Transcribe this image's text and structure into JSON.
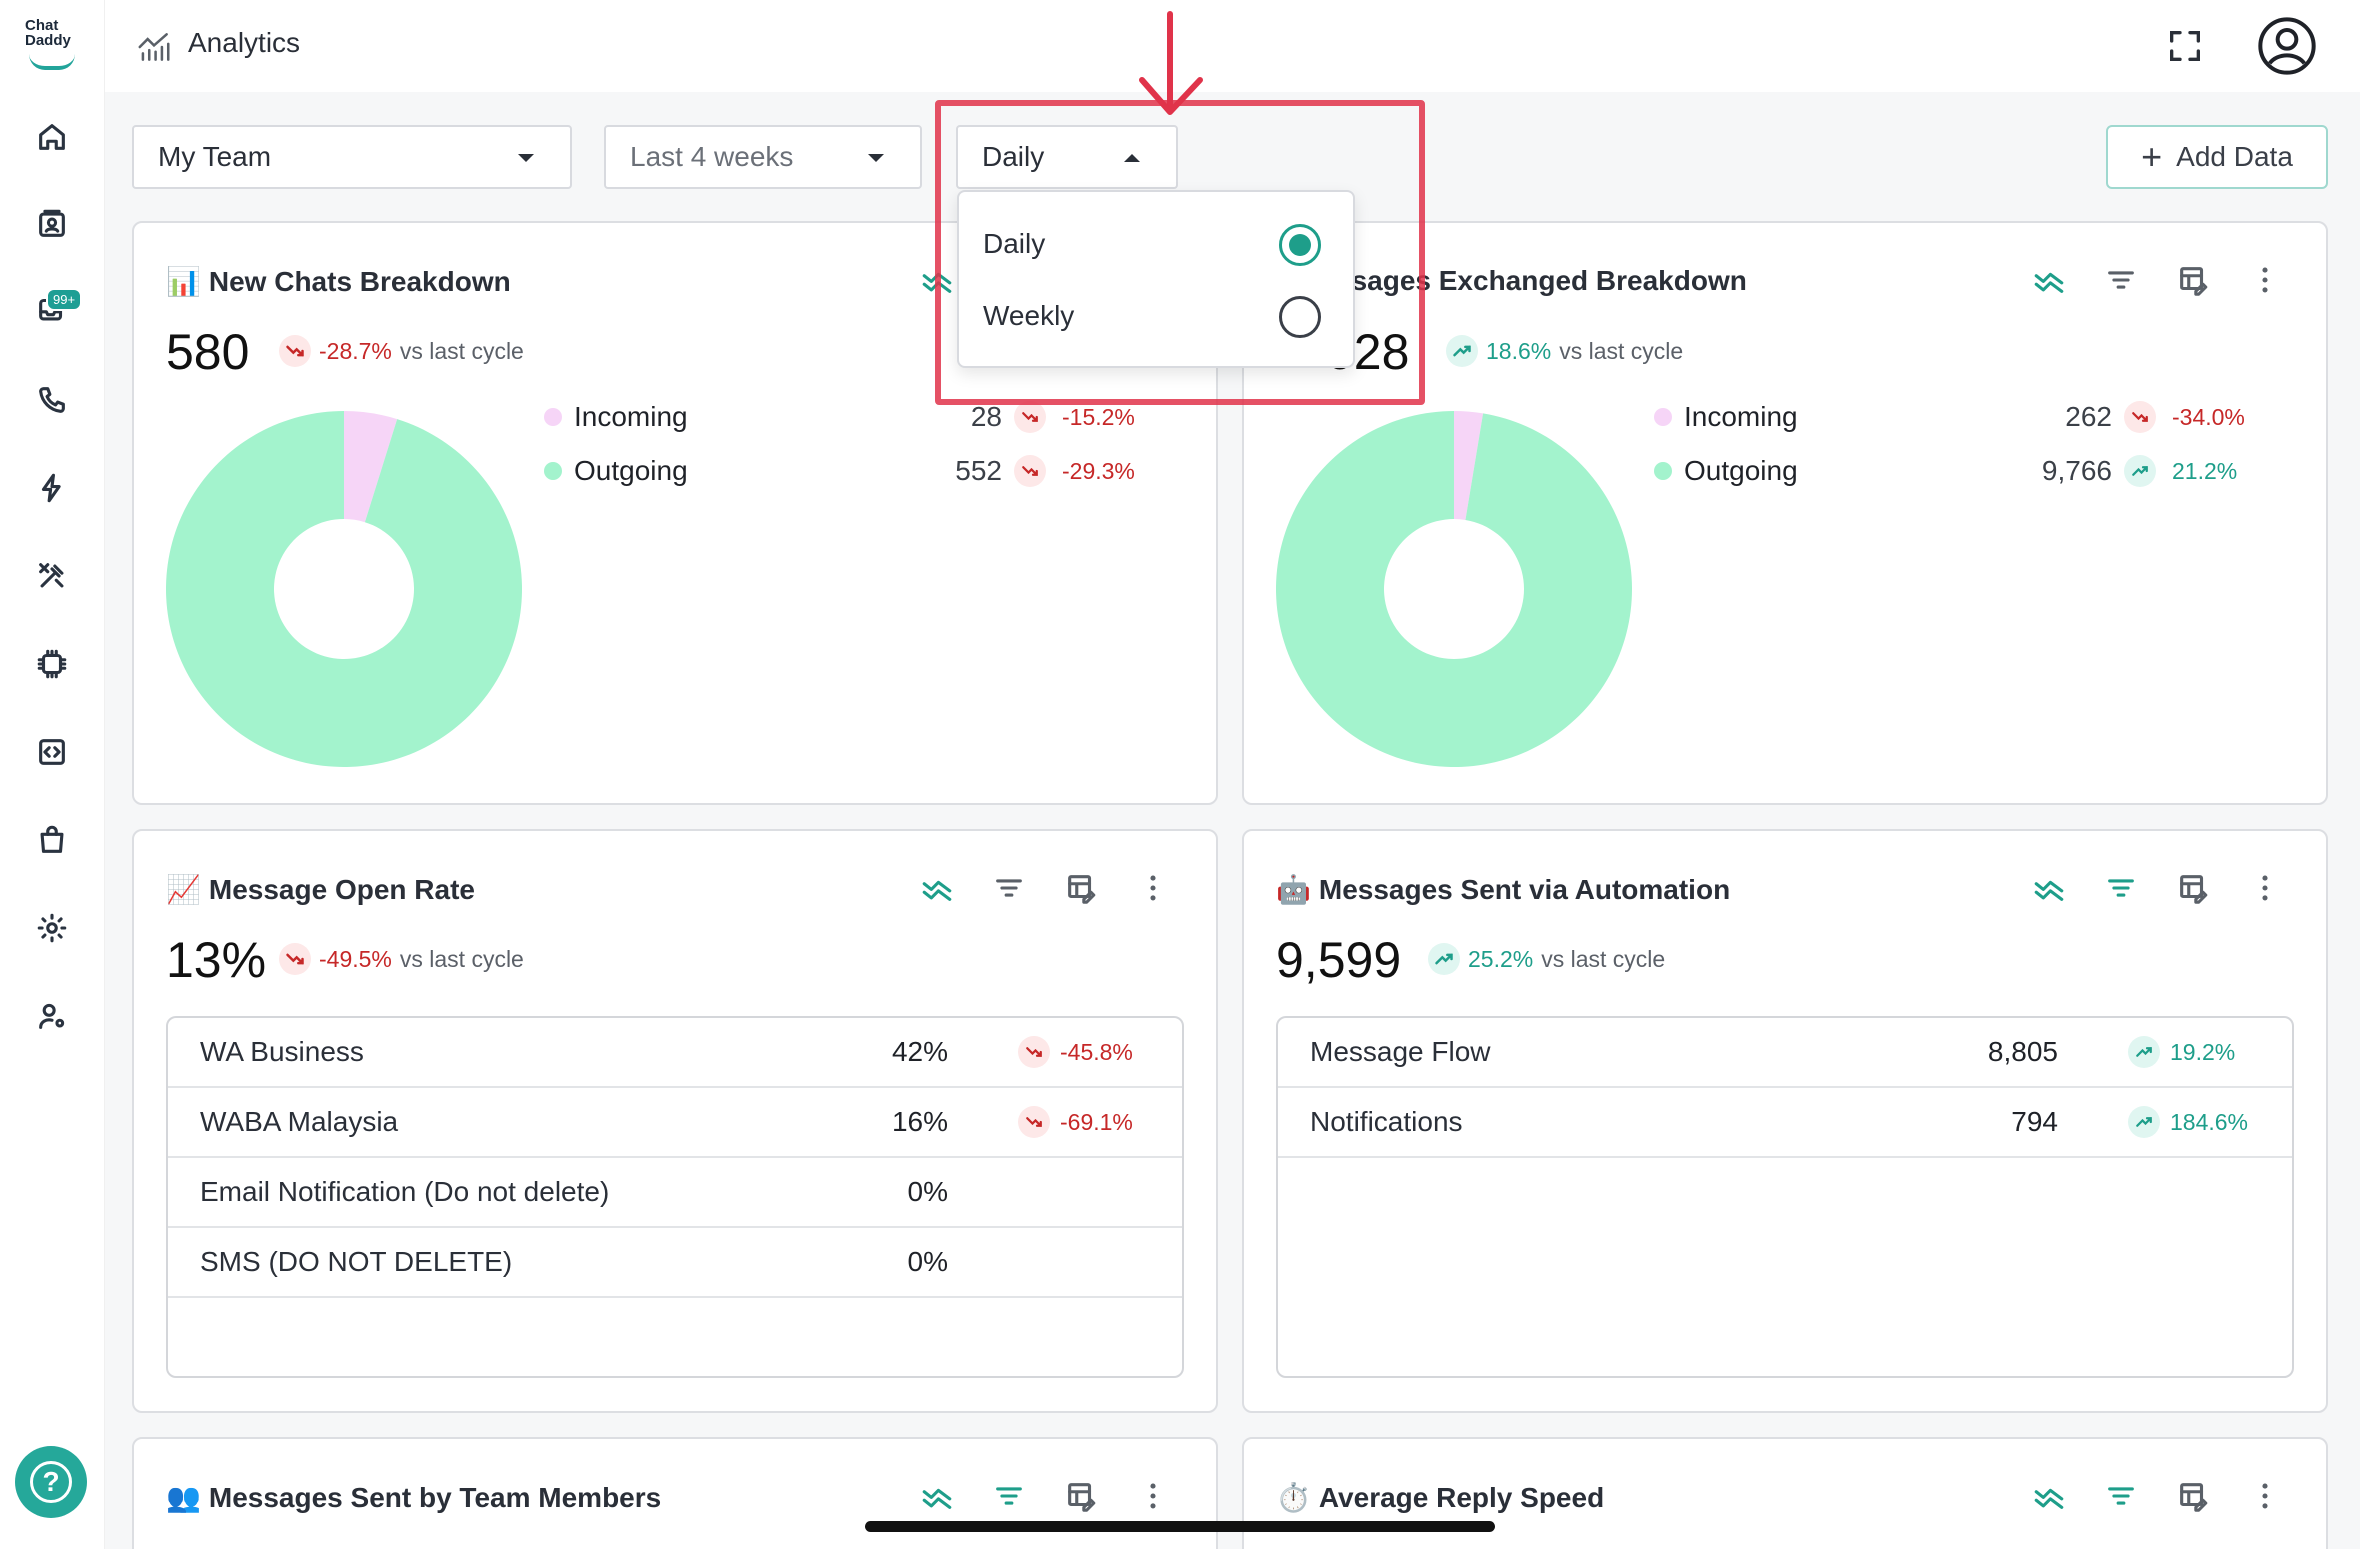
{
  "app": {
    "logo_line1": "Chat",
    "logo_line2": "Daddy",
    "title": "Analytics"
  },
  "sidebar": {
    "inbox_badge": "99+",
    "help_label": "?"
  },
  "filters": {
    "team": "My Team",
    "period": "Last 4 weeks",
    "interval": "Daily"
  },
  "dropdown": {
    "options": [
      {
        "label": "Daily",
        "selected": true
      },
      {
        "label": "Weekly",
        "selected": false
      }
    ]
  },
  "add_data_label": "Add Data",
  "vs_label": "vs last cycle",
  "cards": {
    "new_chats": {
      "emoji": "📊",
      "title": "New Chats Breakdown",
      "total": "580",
      "change": "-28.7%",
      "direction": "down",
      "legend": [
        {
          "label": "Incoming",
          "value": "28",
          "change": "-15.2%",
          "direction": "down",
          "color": "#f6d5f7"
        },
        {
          "label": "Outgoing",
          "value": "552",
          "change": "-29.3%",
          "direction": "down",
          "color": "#a3f3cd"
        }
      ],
      "chart_data": {
        "type": "pie",
        "categories": [
          "Incoming",
          "Outgoing"
        ],
        "values": [
          28,
          552
        ]
      }
    },
    "messages_exchanged": {
      "emoji": "",
      "title_visible": "ssages Exchanged Breakdown",
      "total_visible": "028",
      "change": "18.6%",
      "direction": "up",
      "legend": [
        {
          "label": "Incoming",
          "value": "262",
          "change": "-34.0%",
          "direction": "down",
          "color": "#f6d5f7"
        },
        {
          "label": "Outgoing",
          "value": "9,766",
          "change": "21.2%",
          "direction": "up",
          "color": "#a3f3cd"
        }
      ],
      "chart_data": {
        "type": "pie",
        "categories": [
          "Incoming",
          "Outgoing"
        ],
        "values": [
          262,
          9766
        ]
      }
    },
    "open_rate": {
      "emoji": "📈",
      "title": "Message Open Rate",
      "total": "13%",
      "change": "-49.5%",
      "direction": "down",
      "rows": [
        {
          "name": "WA Business",
          "value": "42%",
          "change": "-45.8%",
          "direction": "down"
        },
        {
          "name": "WABA Malaysia",
          "value": "16%",
          "change": "-69.1%",
          "direction": "down"
        },
        {
          "name": "Email Notification (Do not delete)",
          "value": "0%",
          "change": "",
          "direction": ""
        },
        {
          "name": "SMS (DO NOT DELETE)",
          "value": "0%",
          "change": "",
          "direction": ""
        }
      ]
    },
    "automation": {
      "emoji": "🤖",
      "title": "Messages Sent via Automation",
      "total": "9,599",
      "change": "25.2%",
      "direction": "up",
      "rows": [
        {
          "name": "Message Flow",
          "value": "8,805",
          "change": "19.2%",
          "direction": "up"
        },
        {
          "name": "Notifications",
          "value": "794",
          "change": "184.6%",
          "direction": "up"
        }
      ]
    },
    "team_members": {
      "emoji": "👥",
      "title": "Messages Sent by Team Members"
    },
    "reply_speed": {
      "emoji": "⏱️",
      "title": "Average Reply Speed"
    }
  },
  "colors": {
    "accent": "#1e9e8a",
    "down": "#c62828",
    "incoming": "#f6d5f7",
    "outgoing": "#a3f3cd",
    "annotation": "#e0334a"
  }
}
